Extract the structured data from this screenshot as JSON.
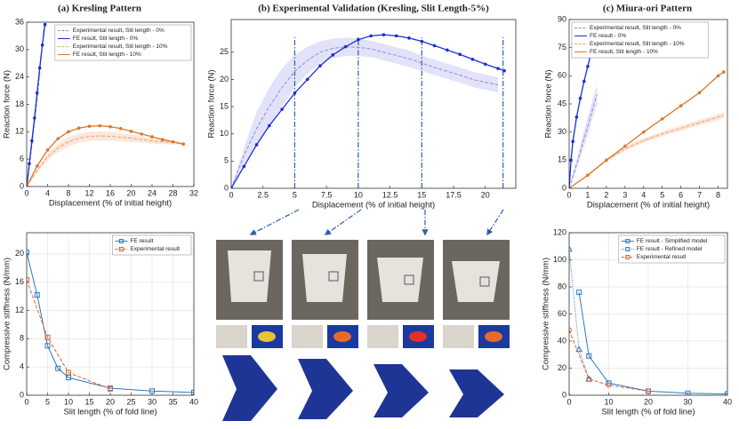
{
  "chart_data": [
    {
      "type": "line",
      "title": "(a) Kresling Pattern",
      "xlabel": "Displacement (% of initial height)",
      "ylabel": "Reaction force (N)",
      "xlim": [
        0,
        32
      ],
      "xticks": [
        0,
        4,
        8,
        12,
        16,
        20,
        24,
        28,
        32
      ],
      "ylim": [
        0,
        36
      ],
      "yticks": [
        0,
        6,
        12,
        18,
        24,
        30,
        36
      ],
      "grid": false,
      "legend": "upper right",
      "series": [
        {
          "name": "Experimental result, Slit length - 0%",
          "color": "#8c8ce6",
          "dash": true,
          "x": [
            0,
            0.5,
            1,
            1.5,
            2,
            2.5,
            3,
            3.3
          ],
          "values": [
            0,
            4,
            9,
            14,
            19,
            25,
            31,
            35
          ]
        },
        {
          "name": "FE result, Slit length - 0%",
          "color": "#1a2fd0",
          "marker": "dot",
          "x": [
            0,
            0.5,
            1,
            1.5,
            2,
            2.5,
            3,
            3.5
          ],
          "values": [
            0,
            5,
            10,
            15,
            20.5,
            26,
            31,
            35.5
          ]
        },
        {
          "name": "Experimental result, Slit length - 10%",
          "color": "#f0a070",
          "dash": true,
          "x": [
            0,
            2,
            4,
            6,
            8,
            10,
            12,
            14,
            16,
            18,
            20,
            22,
            24,
            26,
            28,
            30
          ],
          "values": [
            0,
            3.5,
            6.5,
            8.5,
            9.8,
            10.6,
            11,
            11.1,
            11,
            10.8,
            10.6,
            10.3,
            10,
            9.8,
            9.6,
            9.4
          ],
          "errors": [
            0,
            0.5,
            0.8,
            0.9,
            1,
            1,
            1,
            1,
            1,
            0.9,
            0.8,
            0.7,
            0.6,
            0.5,
            0.4,
            0.3
          ]
        },
        {
          "name": "FE result, Slit length - 10%",
          "color": "#d9782a",
          "marker": "dot",
          "x": [
            0,
            2,
            4,
            6,
            8,
            10,
            12,
            14,
            16,
            18,
            20,
            22,
            24,
            26,
            28,
            30
          ],
          "values": [
            0,
            4.5,
            8,
            10.5,
            12,
            12.8,
            13.2,
            13.3,
            13.1,
            12.7,
            12.1,
            11.5,
            10.9,
            10.3,
            9.8,
            9.3
          ]
        }
      ]
    },
    {
      "type": "line",
      "title": "(b) Experimental Validation (Kresling, Slit Length-5%)",
      "xlabel": "Displacement (% of initial height)",
      "ylabel": "Reaction force (N)",
      "xlim": [
        0,
        22.4
      ],
      "xticks": [
        0,
        2.5,
        5,
        7.5,
        10,
        12.5,
        15,
        17.5,
        20
      ],
      "ylim": [
        0,
        31
      ],
      "yticks": [
        0,
        5,
        10,
        15,
        20,
        25
      ],
      "grid": false,
      "vlines": [
        5,
        10,
        15,
        21.4
      ],
      "series": [
        {
          "color": "#8c8ce6",
          "dash": true,
          "x": [
            0,
            1,
            2,
            3,
            4,
            5,
            6,
            7,
            8,
            9,
            10,
            11,
            12,
            13,
            14,
            15,
            16,
            17,
            18,
            19,
            20,
            21
          ],
          "values": [
            0,
            6,
            11,
            15,
            18.5,
            21.5,
            23.5,
            25,
            25.7,
            26,
            25.9,
            25.6,
            25,
            24.4,
            23.8,
            23,
            22.2,
            21.5,
            20.8,
            20,
            19.5,
            19
          ],
          "errors": [
            0,
            1.5,
            3,
            3.5,
            3.5,
            3,
            2.5,
            2,
            1.8,
            1.7,
            1.6,
            1.5,
            1.5,
            1.5,
            1.5,
            1.4,
            1.4,
            1.4,
            1.4,
            1.4,
            1.4,
            1.4
          ]
        },
        {
          "color": "#1a2fd0",
          "marker": "dot",
          "x": [
            0,
            1,
            2,
            3,
            4,
            5,
            6,
            7,
            8,
            9,
            10,
            11,
            12,
            13,
            14,
            15,
            16,
            17,
            18,
            19,
            20,
            21,
            21.5
          ],
          "values": [
            0,
            4,
            8,
            11.5,
            14.5,
            17.5,
            20,
            22.5,
            24.5,
            26,
            27.3,
            28,
            28.2,
            28,
            27.6,
            27,
            26.2,
            25.4,
            24.6,
            23.7,
            22.8,
            22,
            21.6
          ]
        }
      ]
    },
    {
      "type": "line",
      "title": "(c) Miura-ori Pattern",
      "xlabel": "Displacement (% of initial height)",
      "ylabel": "Reaction force (N)",
      "xlim": [
        0,
        8.5
      ],
      "xticks": [
        0,
        1,
        2,
        3,
        4,
        5,
        6,
        7,
        8
      ],
      "ylim": [
        0,
        90
      ],
      "yticks": [
        0,
        15,
        30,
        45,
        60,
        75,
        90
      ],
      "grid": false,
      "legend": "upper left",
      "series": [
        {
          "name": "Experimental result, Slit length - 0%",
          "color": "#8c8ce6",
          "dash": true,
          "x": [
            0,
            0.25,
            0.5,
            0.75,
            1,
            1.25,
            1.5
          ],
          "values": [
            0,
            8,
            16,
            25,
            33,
            42,
            50
          ],
          "errors": [
            0,
            2,
            3,
            4,
            5,
            5,
            5
          ]
        },
        {
          "name": "FE result - 0%",
          "color": "#1a2fd0",
          "marker": "dot",
          "x": [
            0,
            0.1,
            0.2,
            0.4,
            0.6,
            0.8,
            1,
            1.2,
            1.4,
            1.5
          ],
          "values": [
            0,
            15,
            25,
            38,
            48,
            57,
            65,
            73,
            79,
            80
          ]
        },
        {
          "name": "Experimental result, Slit length - 10%",
          "color": "#f0a070",
          "dash": true,
          "x": [
            0,
            1,
            2,
            3,
            4,
            5,
            6,
            7,
            8,
            8.3
          ],
          "values": [
            0,
            7,
            15,
            21,
            25.5,
            29,
            32,
            35,
            38,
            39
          ],
          "errors": [
            0,
            0.5,
            1,
            1,
            1.2,
            1.3,
            1.4,
            1.5,
            1.6,
            1.6
          ]
        },
        {
          "name": "FE result, Slit length - 10%",
          "color": "#d9782a",
          "marker": "dot",
          "x": [
            0,
            1,
            2,
            3,
            4,
            5,
            6,
            7,
            8,
            8.3
          ],
          "values": [
            0,
            7,
            15,
            22.5,
            30,
            37,
            44,
            51,
            60,
            62
          ]
        }
      ]
    },
    {
      "type": "line",
      "xlabel": "Slit length (% of fold line)",
      "ylabel": "Compressive stiffness (N/mm)",
      "xlim": [
        0,
        40
      ],
      "xticks": [
        0,
        5,
        10,
        15,
        20,
        25,
        30,
        35,
        40
      ],
      "ylim": [
        0,
        23
      ],
      "yticks": [
        0,
        4,
        8,
        12,
        16,
        20
      ],
      "grid": true,
      "legend": "upper right",
      "series": [
        {
          "name": "FE result",
          "color": "#2b7bc4",
          "marker": "square",
          "x": [
            0,
            2.5,
            5,
            7.5,
            10,
            20,
            30,
            40
          ],
          "values": [
            20.2,
            14.2,
            7,
            3.8,
            2.5,
            1,
            0.6,
            0.4
          ]
        },
        {
          "name": "Experimental result",
          "color": "#e06030",
          "dash": true,
          "marker": "square",
          "x": [
            0,
            5,
            10,
            20
          ],
          "values": [
            16.3,
            8.2,
            3.2,
            0.9
          ]
        }
      ]
    },
    {
      "type": "line",
      "xlabel": "Slit length (% of fold line)",
      "ylabel": "Compressive stiffness (N/mm)",
      "xlim": [
        0,
        40
      ],
      "xticks": [
        0,
        10,
        20,
        30,
        40
      ],
      "ylim": [
        0,
        120
      ],
      "yticks": [
        0,
        20,
        40,
        60,
        80,
        100,
        120
      ],
      "grid": true,
      "legend": "upper right",
      "series": [
        {
          "name": "FE result - Simplified model",
          "color": "#2b7bc4",
          "marker": "square",
          "x": [
            2.5,
            5,
            10,
            20,
            30,
            40
          ],
          "values": [
            76,
            29,
            9,
            3,
            1.5,
            1
          ]
        },
        {
          "name": "FE result - Refined model",
          "color": "#2b7bc4",
          "dot": true,
          "marker": "triangle",
          "x": [
            0,
            2.5,
            5
          ],
          "values": [
            108,
            34,
            12
          ]
        },
        {
          "name": "Experimental result",
          "color": "#e06030",
          "dash": true,
          "marker": "circle",
          "x": [
            0,
            5,
            10,
            20
          ],
          "values": [
            48,
            12,
            7.5,
            3
          ]
        }
      ]
    }
  ]
}
